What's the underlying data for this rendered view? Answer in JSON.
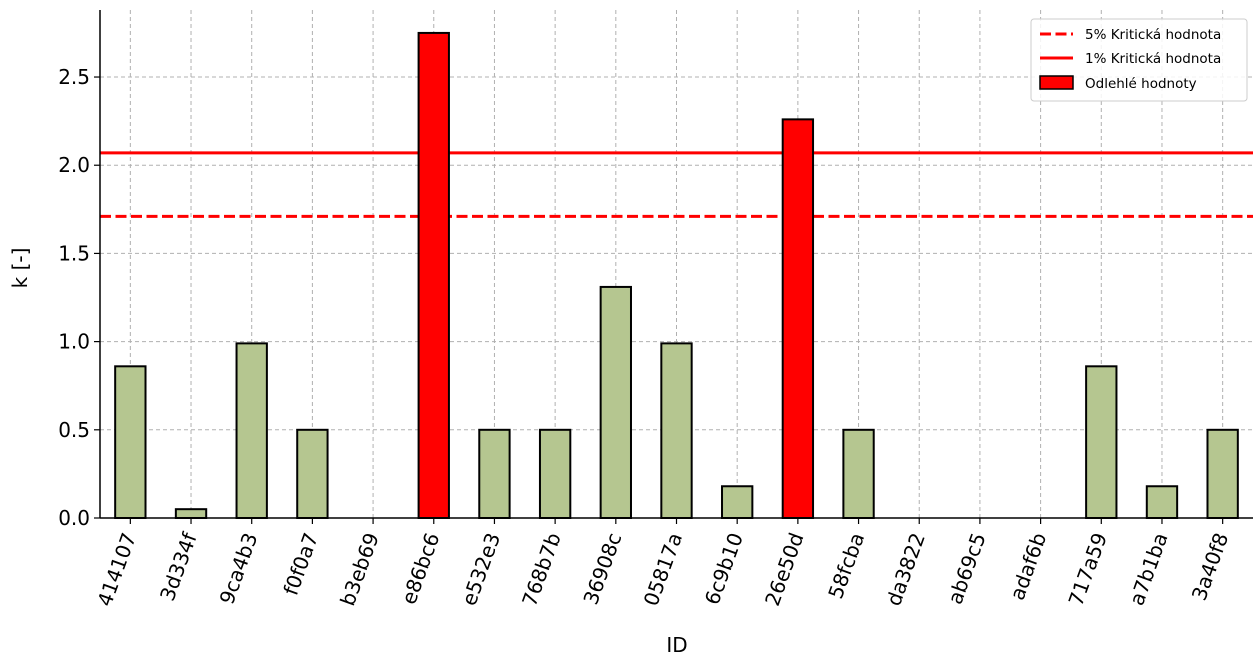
{
  "chart_data": {
    "type": "bar",
    "title": "",
    "xlabel": "ID",
    "ylabel": "k [-]",
    "ylim": [
      0,
      2.88
    ],
    "yticks": [
      0.0,
      0.5,
      1.0,
      1.5,
      2.0,
      2.5
    ],
    "ytick_labels": [
      "0.0",
      "0.5",
      "1.0",
      "1.5",
      "2.0",
      "2.5"
    ],
    "grid": true,
    "categories": [
      "414107",
      "3d334f",
      "9ca4b3",
      "f0f0a7",
      "b3eb69",
      "e86bc6",
      "e532e3",
      "768b7b",
      "36908c",
      "05817a",
      "6c9b10",
      "26e50d",
      "58fcba",
      "da3822",
      "ab69c5",
      "adaf6b",
      "717a59",
      "a7b1ba",
      "3a40f8"
    ],
    "values": [
      0.86,
      0.05,
      0.99,
      0.5,
      0.0,
      2.75,
      0.5,
      0.5,
      1.31,
      0.99,
      0.18,
      2.26,
      0.5,
      0.0,
      0.0,
      0.0,
      0.86,
      0.18,
      0.5
    ],
    "outliers": [
      false,
      false,
      false,
      false,
      false,
      true,
      false,
      false,
      false,
      false,
      false,
      true,
      false,
      false,
      false,
      false,
      false,
      false,
      false
    ],
    "colors": {
      "normal": "#b5c690",
      "outlier": "#ff0000",
      "edge": "#000000",
      "critical": "#ff0000",
      "grid": "#b0b0b0"
    },
    "critical_values": [
      {
        "name": "5% Kritická hodnota",
        "value": 1.71,
        "style": "dashed"
      },
      {
        "name": "1% Kritická hodnota",
        "value": 2.07,
        "style": "solid"
      }
    ],
    "legend": {
      "placement": "top-right",
      "entries": [
        "5% Kritická hodnota",
        "1% Kritická hodnota",
        "Odlehlé hodnoty"
      ]
    }
  }
}
